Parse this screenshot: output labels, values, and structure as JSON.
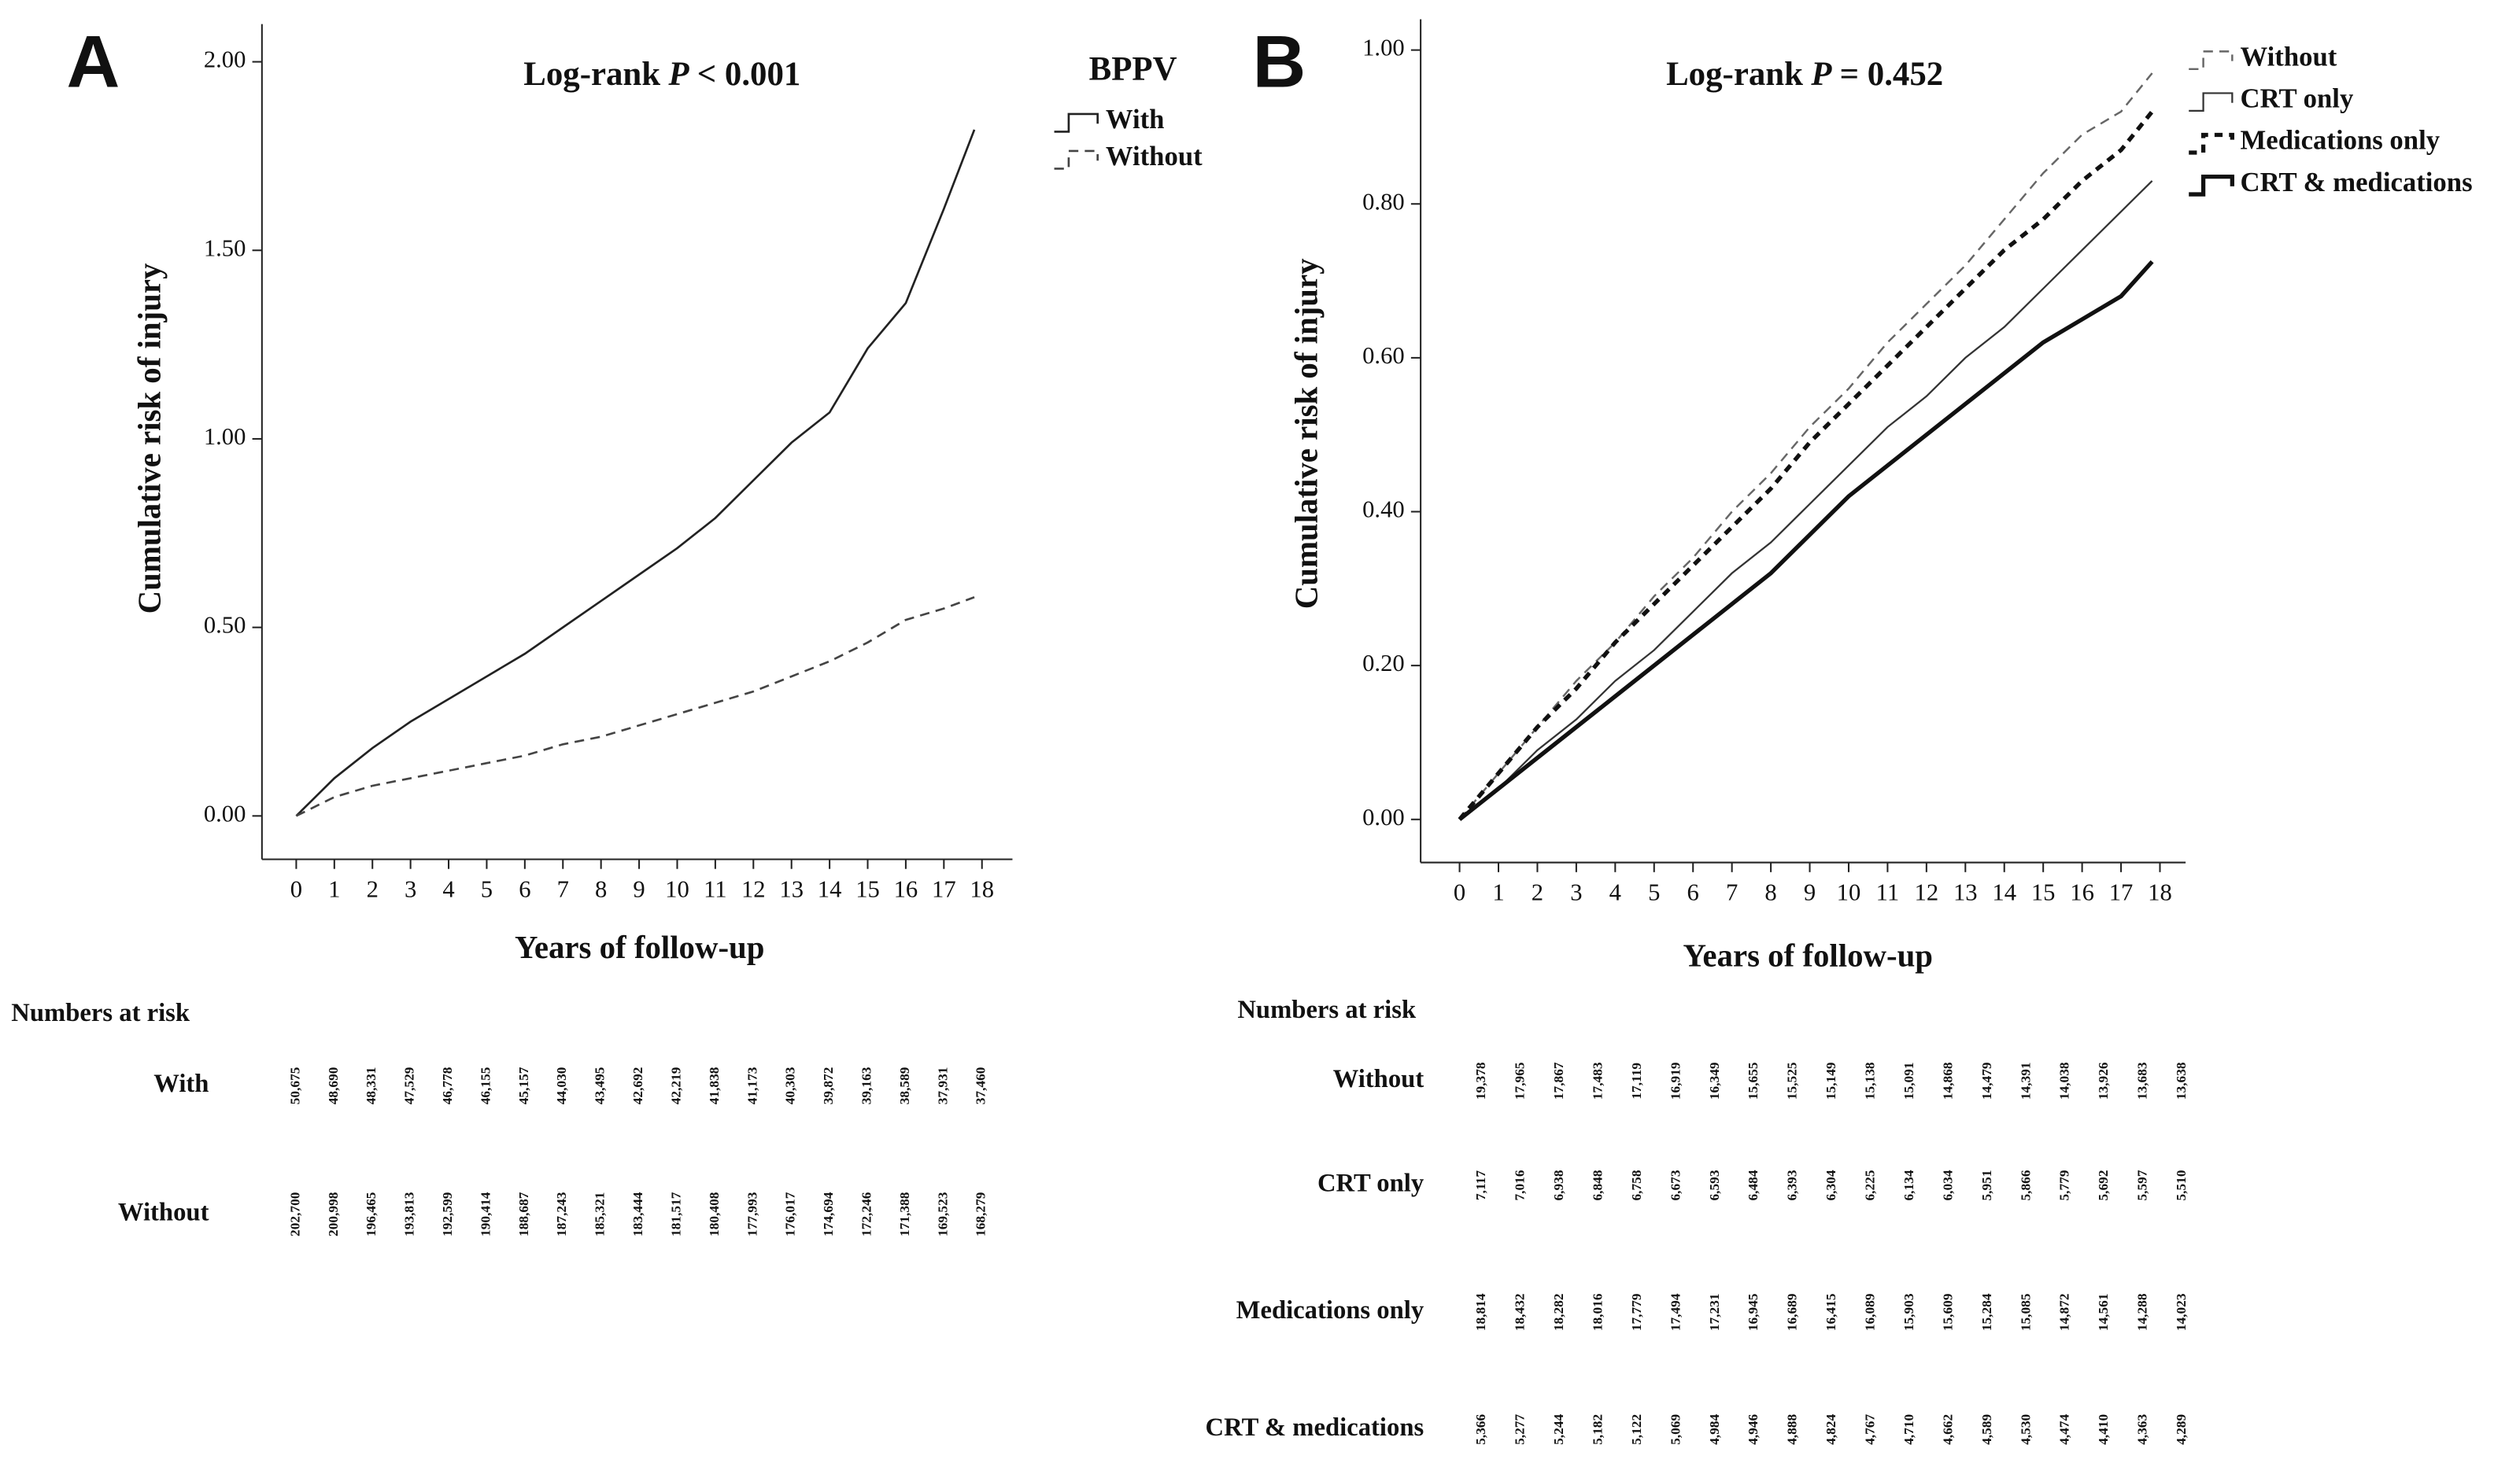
{
  "chart_data": [
    {
      "type": "line",
      "panel_label": "A",
      "title": [
        "Log-rank",
        "P",
        "< 0.001"
      ],
      "x_label": "Years of follow-up",
      "y_label": "Cumulative risk of injury",
      "xlim": [
        -0.9,
        18.8
      ],
      "ylim": [
        -0.115,
        2.1
      ],
      "xticks": [
        0,
        1,
        2,
        3,
        4,
        5,
        6,
        7,
        8,
        9,
        10,
        11,
        12,
        13,
        14,
        15,
        16,
        17,
        18
      ],
      "yticks": [
        {
          "value": 0,
          "label": "0.00"
        },
        {
          "value": 0.5,
          "label": "0.50"
        },
        {
          "value": 1,
          "label": "1.00"
        },
        {
          "value": 1.5,
          "label": "1.50"
        },
        {
          "value": 2,
          "label": "2.00"
        }
      ],
      "x": [
        0,
        1,
        2,
        3,
        4,
        5,
        6,
        7,
        8,
        9,
        10,
        11,
        12,
        13,
        14,
        15,
        16,
        17,
        17.8
      ],
      "legend_title": "BPPV",
      "legend": "outside-top-right",
      "series": [
        {
          "name": "With",
          "color": "#222222",
          "dash": "solid",
          "width": 1.3,
          "values": [
            0,
            0.1,
            0.18,
            0.25,
            0.31,
            0.37,
            0.43,
            0.5,
            0.57,
            0.64,
            0.71,
            0.79,
            0.89,
            0.99,
            1.07,
            1.24,
            1.36,
            1.61,
            1.82
          ]
        },
        {
          "name": "Without",
          "color": "#444444",
          "dash": "dashed",
          "width": 1.3,
          "values": [
            0,
            0.05,
            0.08,
            0.1,
            0.12,
            0.14,
            0.16,
            0.19,
            0.21,
            0.24,
            0.27,
            0.3,
            0.33,
            0.37,
            0.41,
            0.46,
            0.52,
            0.55,
            0.58
          ]
        }
      ],
      "risk_table": {
        "title": "Numbers at risk",
        "rows": [
          {
            "name": "With",
            "values": [
              "50,675",
              "48,690",
              "48,331",
              "47,529",
              "46,778",
              "46,155",
              "45,157",
              "44,030",
              "43,495",
              "42,692",
              "42,219",
              "41,838",
              "41,173",
              "40,303",
              "39,872",
              "39,163",
              "38,589",
              "37,931",
              "37,460"
            ]
          },
          {
            "name": "Without",
            "values": [
              "202,700",
              "200,998",
              "196,465",
              "193,813",
              "192,599",
              "190,414",
              "188,687",
              "187,243",
              "185,321",
              "183,444",
              "181,517",
              "180,408",
              "177,993",
              "176,017",
              "174,694",
              "172,246",
              "171,388",
              "169,523",
              "168,279"
            ]
          }
        ]
      }
    },
    {
      "type": "line",
      "panel_label": "B",
      "title": [
        "Log-rank",
        "P",
        "= 0.452"
      ],
      "x_label": "Years of follow-up",
      "y_label": "Cumulative risk of injury",
      "xlim": [
        -1,
        18.66
      ],
      "ylim": [
        -0.056,
        1.04
      ],
      "xticks": [
        0,
        1,
        2,
        3,
        4,
        5,
        6,
        7,
        8,
        9,
        10,
        11,
        12,
        13,
        14,
        15,
        16,
        17,
        18
      ],
      "yticks": [
        {
          "value": 0,
          "label": "0.00"
        },
        {
          "value": 0.2,
          "label": "0.20"
        },
        {
          "value": 0.4,
          "label": "0.40"
        },
        {
          "value": 0.6,
          "label": "0.60"
        },
        {
          "value": 0.8,
          "label": "0.80"
        },
        {
          "value": 1,
          "label": "1.00"
        }
      ],
      "x": [
        0,
        1,
        2,
        3,
        4,
        5,
        6,
        7,
        8,
        9,
        10,
        11,
        12,
        13,
        14,
        15,
        16,
        17,
        17.8
      ],
      "legend": "outside-top-right",
      "series": [
        {
          "name": "Without",
          "color": "#666666",
          "dash": "dashed",
          "width": 1.2,
          "values": [
            0,
            0.06,
            0.12,
            0.18,
            0.23,
            0.29,
            0.34,
            0.4,
            0.45,
            0.51,
            0.56,
            0.62,
            0.67,
            0.72,
            0.78,
            0.84,
            0.89,
            0.92,
            0.97
          ]
        },
        {
          "name": "CRT only",
          "color": "#333333",
          "dash": "solid",
          "width": 1.1,
          "values": [
            0,
            0.04,
            0.09,
            0.13,
            0.18,
            0.22,
            0.27,
            0.32,
            0.36,
            0.41,
            0.46,
            0.51,
            0.55,
            0.6,
            0.64,
            0.69,
            0.74,
            0.79,
            0.83
          ]
        },
        {
          "name": "Medications only",
          "color": "#111111",
          "dash": "dashed",
          "width": 2.6,
          "values": [
            0,
            0.06,
            0.12,
            0.17,
            0.23,
            0.28,
            0.33,
            0.38,
            0.43,
            0.49,
            0.54,
            0.59,
            0.64,
            0.69,
            0.74,
            0.78,
            0.83,
            0.87,
            0.92
          ]
        },
        {
          "name": "CRT & medications",
          "color": "#111111",
          "dash": "solid",
          "width": 2.6,
          "values": [
            0,
            0.04,
            0.08,
            0.12,
            0.16,
            0.2,
            0.24,
            0.28,
            0.32,
            0.37,
            0.42,
            0.46,
            0.5,
            0.54,
            0.58,
            0.62,
            0.65,
            0.68,
            0.725
          ]
        }
      ],
      "risk_table": {
        "title": "Numbers at risk",
        "rows": [
          {
            "name": "Without",
            "values": [
              "19,378",
              "17,965",
              "17,867",
              "17,483",
              "17,119",
              "16,919",
              "16,349",
              "15,655",
              "15,525",
              "15,149",
              "15,138",
              "15,091",
              "14,868",
              "14,479",
              "14,391",
              "14,038",
              "13,926",
              "13,683",
              "13,638"
            ]
          },
          {
            "name": "CRT only",
            "values": [
              "7,117",
              "7,016",
              "6,938",
              "6,848",
              "6,758",
              "6,673",
              "6,593",
              "6,484",
              "6,393",
              "6,304",
              "6,225",
              "6,134",
              "6,034",
              "5,951",
              "5,866",
              "5,779",
              "5,692",
              "5,597",
              "5,510"
            ]
          },
          {
            "name": "Medications only",
            "values": [
              "18,814",
              "18,432",
              "18,282",
              "18,016",
              "17,779",
              "17,494",
              "17,231",
              "16,945",
              "16,689",
              "16,415",
              "16,089",
              "15,903",
              "15,609",
              "15,284",
              "15,085",
              "14,872",
              "14,561",
              "14,288",
              "14,023"
            ]
          },
          {
            "name": "CRT & medications",
            "values": [
              "5,366",
              "5,277",
              "5,244",
              "5,182",
              "5,122",
              "5,069",
              "4,984",
              "4,946",
              "4,888",
              "4,824",
              "4,767",
              "4,710",
              "4,662",
              "4,589",
              "4,530",
              "4,474",
              "4,410",
              "4,363",
              "4,289"
            ]
          }
        ]
      }
    }
  ]
}
